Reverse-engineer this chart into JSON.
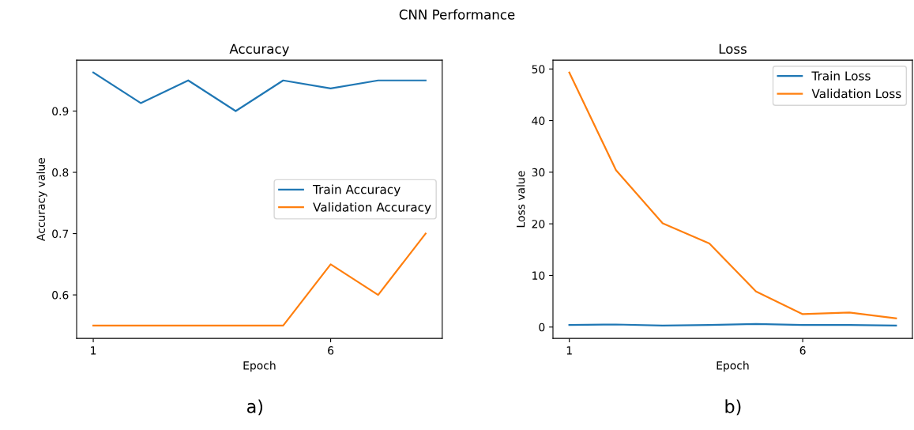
{
  "chart_data": [
    {
      "type": "line",
      "title": "Accuracy",
      "xlabel": "Epoch",
      "ylabel": "Accuracy value",
      "x": [
        1,
        2,
        3,
        4,
        5,
        6,
        7,
        8
      ],
      "xlim": [
        0.65,
        8.35
      ],
      "xticks": [
        1,
        6
      ],
      "ylim": [
        0.529,
        0.983
      ],
      "yticks": [
        0.6,
        0.7,
        0.8,
        0.9
      ],
      "series": [
        {
          "name": "Train Accuracy",
          "color": "#1f77b4",
          "values": [
            0.963,
            0.913,
            0.95,
            0.9,
            0.95,
            0.937,
            0.95,
            0.95
          ]
        },
        {
          "name": "Validation Accuracy",
          "color": "#ff7f0e",
          "values": [
            0.55,
            0.55,
            0.55,
            0.55,
            0.55,
            0.65,
            0.6,
            0.7
          ]
        }
      ],
      "legend": "right",
      "grid": false,
      "annotations": [
        "CNN Performance",
        "a)"
      ]
    },
    {
      "type": "line",
      "title": "Loss",
      "xlabel": "Epoch",
      "ylabel": "Loss value",
      "x": [
        1,
        2,
        3,
        4,
        5,
        6,
        7,
        8
      ],
      "xlim": [
        0.65,
        8.35
      ],
      "xticks": [
        1,
        6
      ],
      "ylim": [
        -2.2,
        51.7
      ],
      "yticks": [
        0,
        10,
        20,
        30,
        40,
        50
      ],
      "series": [
        {
          "name": "Train Loss",
          "color": "#1f77b4",
          "values": [
            0.4,
            0.5,
            0.3,
            0.4,
            0.6,
            0.4,
            0.4,
            0.3
          ]
        },
        {
          "name": "Validation Loss",
          "color": "#ff7f0e",
          "values": [
            49.3,
            30.4,
            20.1,
            16.2,
            6.9,
            2.5,
            2.8,
            1.7
          ]
        }
      ],
      "legend": "top right",
      "grid": false,
      "annotations": [
        "b)"
      ]
    }
  ]
}
